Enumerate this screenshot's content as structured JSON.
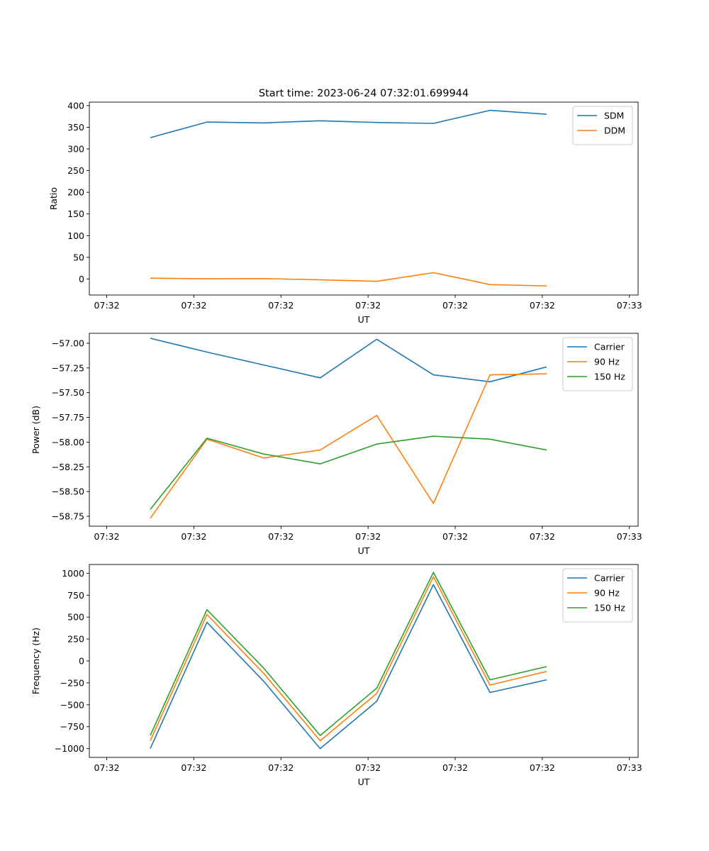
{
  "figure_title": "Start time: 2023-06-24 07:32:01.699944",
  "chart_data": [
    {
      "type": "line",
      "title": "Start time: 2023-06-24 07:32:01.699944",
      "xlabel": "UT",
      "ylabel": "Ratio",
      "x": [
        0,
        1,
        2,
        3,
        4,
        5,
        6,
        7
      ],
      "x_tick_labels": [
        "07:32",
        "07:32",
        "07:32",
        "07:32",
        "07:32",
        "07:32",
        "07:33"
      ],
      "y_ticks": [
        0,
        50,
        100,
        150,
        200,
        250,
        300,
        350,
        400
      ],
      "y_tick_labels": [
        "0",
        "50",
        "100",
        "150",
        "200",
        "250",
        "300",
        "350",
        "400"
      ],
      "ylim": [
        -37,
        408
      ],
      "legend_position": "upper-right",
      "series": [
        {
          "name": "SDM",
          "color": "#1f77b4",
          "values": [
            326,
            362,
            360,
            365,
            361,
            359,
            389,
            380
          ]
        },
        {
          "name": "DDM",
          "color": "#ff7f0e",
          "values": [
            2,
            0.5,
            1,
            -2,
            -5.5,
            14.5,
            -13,
            -16
          ]
        }
      ]
    },
    {
      "type": "line",
      "xlabel": "UT",
      "ylabel": "Power (dB)",
      "x": [
        0,
        1,
        2,
        3,
        4,
        5,
        6,
        7
      ],
      "x_tick_labels": [
        "07:32",
        "07:32",
        "07:32",
        "07:32",
        "07:32",
        "07:32",
        "07:33"
      ],
      "y_ticks": [
        -57.0,
        -57.25,
        -57.5,
        -57.75,
        -58.0,
        -58.25,
        -58.5,
        -58.75
      ],
      "y_tick_labels": [
        "−57.00",
        "−57.25",
        "−57.50",
        "−57.75",
        "−58.00",
        "−58.25",
        "−58.50",
        "−58.75"
      ],
      "ylim": [
        -58.85,
        -56.9
      ],
      "legend_position": "upper-right",
      "series": [
        {
          "name": "Carrier",
          "color": "#1f77b4",
          "values": [
            -56.95,
            -57.09,
            -57.22,
            -57.35,
            -56.96,
            -57.32,
            -57.39,
            -57.24
          ]
        },
        {
          "name": "90 Hz",
          "color": "#ff7f0e",
          "values": [
            -58.77,
            -57.97,
            -58.16,
            -58.08,
            -57.73,
            -58.62,
            -57.32,
            -57.31
          ]
        },
        {
          "name": "150 Hz",
          "color": "#2ca02c",
          "values": [
            -58.68,
            -57.96,
            -58.12,
            -58.22,
            -58.02,
            -57.94,
            -57.97,
            -58.08
          ]
        }
      ]
    },
    {
      "type": "line",
      "xlabel": "UT",
      "ylabel": "Frequency (Hz)",
      "x": [
        0,
        1,
        2,
        3,
        4,
        5,
        6,
        7
      ],
      "x_tick_labels": [
        "07:32",
        "07:32",
        "07:32",
        "07:32",
        "07:32",
        "07:32",
        "07:33"
      ],
      "y_ticks": [
        1000,
        750,
        500,
        250,
        0,
        -250,
        -500,
        -750,
        -1000
      ],
      "y_tick_labels": [
        "1000",
        "750",
        "500",
        "250",
        "0",
        "−250",
        "−500",
        "−750",
        "−1000"
      ],
      "ylim": [
        -1100,
        1100
      ],
      "legend_position": "upper-right",
      "series": [
        {
          "name": "Carrier",
          "color": "#1f77b4",
          "values": [
            -1000,
            440,
            -230,
            -1000,
            -460,
            870,
            -360,
            -215
          ]
        },
        {
          "name": "90 Hz",
          "color": "#ff7f0e",
          "values": [
            -910,
            530,
            -140,
            -910,
            -370,
            960,
            -275,
            -120
          ]
        },
        {
          "name": "150 Hz",
          "color": "#2ca02c",
          "values": [
            -850,
            585,
            -80,
            -850,
            -310,
            1010,
            -215,
            -65
          ]
        }
      ]
    }
  ]
}
